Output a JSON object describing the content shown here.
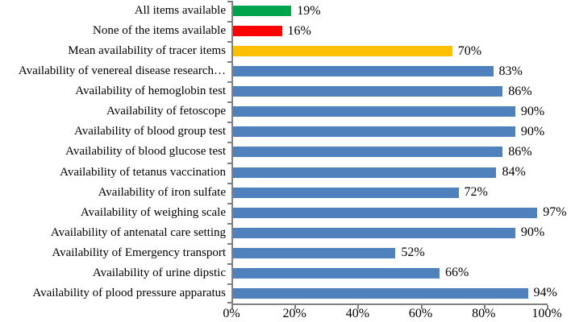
{
  "chart_data": {
    "type": "bar",
    "orientation": "horizontal",
    "title": "",
    "xlabel": "",
    "ylabel": "",
    "xlim": [
      0,
      100
    ],
    "grid": false,
    "legend": false,
    "x_tick_labels": [
      "0%",
      "20%",
      "40%",
      "60%",
      "80%",
      "100%"
    ],
    "x_tick_values": [
      0,
      20,
      40,
      60,
      80,
      100
    ],
    "categories": [
      "All items available",
      "None of the items available",
      "Mean availability of tracer items",
      "Availability of venereal disease research…",
      "Availability of hemoglobin test",
      "Availability of fetoscope",
      "Availability of blood group test",
      "Availability of blood glucose test",
      "Availability of tetanus vaccination",
      "Availability of iron sulfate",
      "Availability of weighing scale",
      "Availability of antenatal care setting",
      "Availability of Emergency transport",
      "Availability of urine dipstic",
      "Availability of plood pressure apparatus"
    ],
    "values": [
      19,
      16,
      70,
      83,
      86,
      90,
      90,
      86,
      84,
      72,
      97,
      90,
      52,
      66,
      94
    ],
    "value_labels": [
      "19%",
      "16%",
      "70%",
      "83%",
      "86%",
      "90%",
      "90%",
      "86%",
      "84%",
      "72%",
      "97%",
      "90%",
      "52%",
      "66%",
      "94%"
    ],
    "bar_colors": [
      "#00A44A",
      "#FF0000",
      "#FFC000",
      "#4F81BD",
      "#4F81BD",
      "#4F81BD",
      "#4F81BD",
      "#4F81BD",
      "#4F81BD",
      "#4F81BD",
      "#4F81BD",
      "#4F81BD",
      "#4F81BD",
      "#4F81BD",
      "#4F81BD"
    ]
  },
  "style_colors": {
    "axis": "#808080",
    "text": "#000000",
    "background": "#ffffff"
  }
}
